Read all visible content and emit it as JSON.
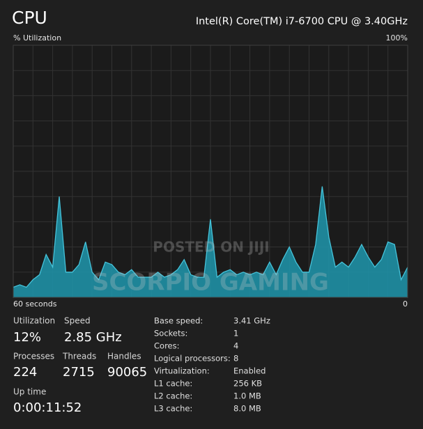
{
  "header": {
    "title": "CPU",
    "processor": "Intel(R) Core(TM) i7-6700 CPU @ 3.40GHz"
  },
  "chart_data": {
    "type": "area",
    "ylabel": "% Utilization",
    "ylim": [
      0,
      100
    ],
    "yticks": [
      {
        "value": 100,
        "label": "100%"
      }
    ],
    "xlim": [
      60,
      0
    ],
    "xticks": [
      {
        "value": 60,
        "label": "60 seconds"
      },
      0
    ],
    "grid": true,
    "color": "#1e97ad",
    "line_color": "#45c3da",
    "x": [
      60,
      59,
      58,
      57,
      56,
      55,
      54,
      53,
      52,
      51,
      50,
      49,
      48,
      47,
      46,
      45,
      44,
      43,
      42,
      41,
      40,
      39,
      38,
      37,
      36,
      35,
      34,
      33,
      32,
      31,
      30,
      29,
      28,
      27,
      26,
      25,
      24,
      23,
      22,
      21,
      20,
      19,
      18,
      17,
      16,
      15,
      14,
      13,
      12,
      11,
      10,
      9,
      8,
      7,
      6,
      5,
      4,
      3,
      2,
      1,
      0
    ],
    "values": [
      4,
      5,
      4,
      7,
      9,
      17,
      12,
      40,
      10,
      10,
      13,
      22,
      10,
      7,
      14,
      13,
      10,
      9,
      11,
      8,
      8,
      8,
      10,
      8,
      9,
      11,
      15,
      9,
      8,
      8,
      31,
      8,
      10,
      11,
      9,
      10,
      9,
      10,
      9,
      14,
      9,
      15,
      20,
      14,
      10,
      10,
      21,
      44,
      24,
      12,
      14,
      12,
      16,
      21,
      16,
      12,
      15,
      22,
      21,
      7,
      12
    ]
  },
  "watermarks": [
    "POSTED ON JIJI",
    "SCORPIO GAMING"
  ],
  "stats": [
    {
      "label": "Utilization",
      "value": "12%"
    },
    {
      "label": "Speed",
      "value": "2.85 GHz"
    },
    {
      "label": "Processes",
      "value": "224"
    },
    {
      "label": "Threads",
      "value": "2715"
    },
    {
      "label": "Handles",
      "value": "90065"
    },
    {
      "label": "Up time",
      "value": "0:00:11:52"
    }
  ],
  "details": [
    {
      "label": "Base speed:",
      "value": "3.41 GHz"
    },
    {
      "label": "Sockets:",
      "value": "1"
    },
    {
      "label": "Cores:",
      "value": "4"
    },
    {
      "label": "Logical processors:",
      "value": "8"
    },
    {
      "label": "Virtualization:",
      "value": "Enabled"
    },
    {
      "label": "L1 cache:",
      "value": "256 KB"
    },
    {
      "label": "L2 cache:",
      "value": "1.0 MB"
    },
    {
      "label": "L3 cache:",
      "value": "8.0 MB"
    }
  ]
}
